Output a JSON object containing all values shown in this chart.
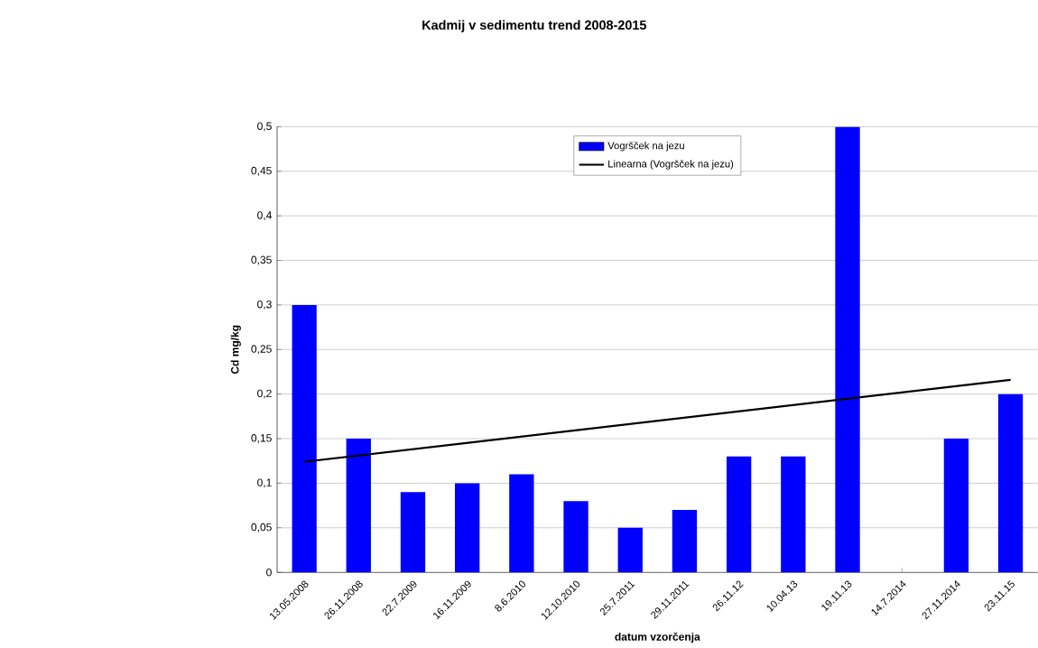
{
  "chart_data": {
    "type": "bar",
    "title": "Kadmij v sedimentu trend 2008-2015",
    "xlabel": "datum vzorčenja",
    "ylabel": "Cd mg/kg",
    "categories": [
      "13.05.2008",
      "26.11.2008",
      "22.7.2009",
      "16.11.2009",
      "8.6.2010",
      "12.10.2010",
      "25.7.2011",
      "29.11.2011",
      "26.11.12",
      "10.04.13",
      "19.11.13",
      "14.7.2014",
      "27.11.2014",
      "23.11.15"
    ],
    "series": [
      {
        "name": "Vogršček na jezu",
        "color": "#0000ff",
        "values": [
          0.3,
          0.15,
          0.09,
          0.1,
          0.11,
          0.08,
          0.05,
          0.07,
          0.13,
          0.13,
          0.5,
          null,
          0.15,
          0.2
        ]
      },
      {
        "name": "Linearna (Vogršček na jezu)",
        "type": "line",
        "color": "#000000",
        "values": [
          0.124,
          null,
          null,
          null,
          null,
          null,
          null,
          null,
          null,
          null,
          null,
          null,
          null,
          0.216
        ]
      }
    ],
    "ylim": [
      0,
      0.5
    ],
    "yticks": [
      0,
      {
        "value": 0.05,
        "label": "0,05"
      },
      {
        "value": 0.1,
        "label": "0,1"
      },
      {
        "value": 0.15,
        "label": "0,15"
      },
      {
        "value": 0.2,
        "label": "0,2"
      },
      {
        "value": 0.25,
        "label": "0,25"
      },
      {
        "value": 0.3,
        "label": "0,3"
      },
      {
        "value": 0.35,
        "label": "0,35"
      },
      {
        "value": 0.4,
        "label": "0,4"
      },
      {
        "value": 0.45,
        "label": "0,45"
      },
      {
        "value": 0.5,
        "label": "0,5"
      }
    ],
    "grid": "y",
    "legend": "top",
    "marker": "none",
    "line_style": "solid"
  }
}
